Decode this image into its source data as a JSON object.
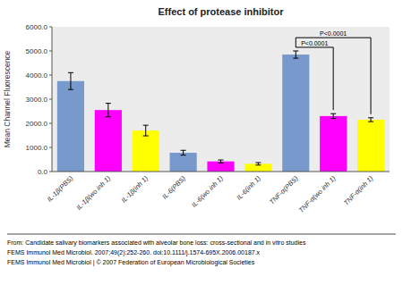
{
  "chart_data": {
    "type": "bar",
    "title": "Effect of protease inhibitor",
    "ylabel": "Mean Channel Fluorescence",
    "categories": [
      "IL-1β(PBS)",
      "IL-1β(wo inh 1)",
      "IL-1β(inh 1)",
      "IL-6(PBS)",
      "IL-6(wo inh 1)",
      "IL-6(inh 1)",
      "TNF-α(PBS)",
      "TNF-α(wo inh 1)",
      "TNF-α(inh 1)"
    ],
    "values": [
      3750,
      2550,
      1700,
      780,
      420,
      320,
      4850,
      2300,
      2150
    ],
    "errors": [
      350,
      280,
      220,
      100,
      60,
      50,
      150,
      100,
      80
    ],
    "colors": [
      "#7799CC",
      "#FF00FF",
      "#FFFF00",
      "#7799CC",
      "#FF00FF",
      "#FFFF00",
      "#7799CC",
      "#FF00FF",
      "#FFFF00"
    ],
    "ylim": [
      0,
      6000
    ],
    "yticks": [
      {
        "value": 0,
        "label": "0.0"
      },
      {
        "value": 1000,
        "label": "1000.0"
      },
      {
        "value": 2000,
        "label": "2000.0"
      },
      {
        "value": 3000,
        "label": "3000.0"
      },
      {
        "value": 4000,
        "label": "4000.0"
      },
      {
        "value": 5000,
        "label": "5000.0"
      },
      {
        "value": 6000,
        "label": "6000.0"
      }
    ],
    "grid": false,
    "annotations": [
      {
        "label": "P<0.0001",
        "from": "TNF-α(PBS)",
        "to": "TNF-α(inh 1)",
        "y": 5550
      },
      {
        "label": "P<0.0001",
        "from": "TNF-α(PBS)",
        "to": "TNF-α(wo inh 1)",
        "y": 5150
      }
    ],
    "footer": [
      "From: Candidate salivary biomarkers associated with alveolar bone loss: cross-sectional and in vitro studies",
      "FEMS Immunol Med Microbiol. 2007;49(2):252-260. doi:10.1111/j.1574-695X.2006.00187.x",
      "FEMS Immunol Med Microbiol | © 2007 Federation of European Microbiological Societies"
    ]
  }
}
